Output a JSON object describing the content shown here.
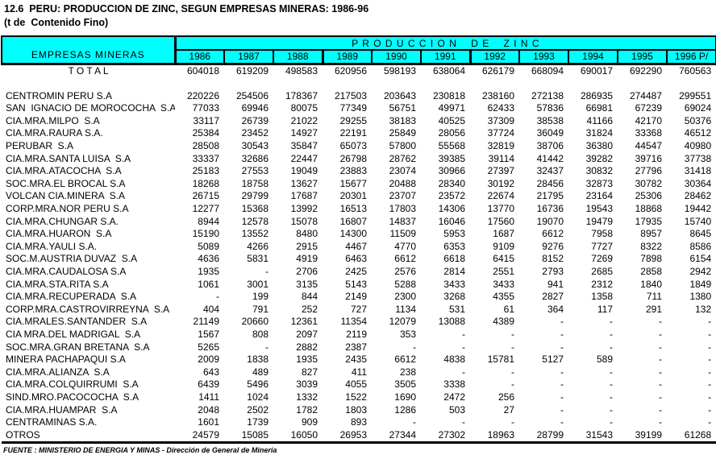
{
  "title": "12.6  PERU: PRODUCCION DE ZINC, SEGUN EMPRESAS MINERAS: 1986-96",
  "subtitle": "(t de  Contenido Fino)",
  "colors": {
    "header_bg": "#00FFFF",
    "border": "#000000",
    "text": "#000000",
    "page_bg": "#FFFFFF"
  },
  "table": {
    "row_header": "EMPRESAS MINERAS",
    "group_header": "P R O D U C C I O N    D E    Z I N C",
    "years": [
      "1986",
      "1987",
      "1988",
      "1989",
      "1990",
      "1991",
      "1992",
      "1993",
      "1994",
      "1995",
      "1996 P/"
    ],
    "total_label": "T O T A L",
    "total_values": [
      "604018",
      "619209",
      "498583",
      "620956",
      "598193",
      "638064",
      "626179",
      "668094",
      "690017",
      "692290",
      "760563"
    ],
    "rows": [
      {
        "name": "CENTROMIN PERU S.A",
        "values": [
          "220226",
          "254506",
          "178367",
          "217503",
          "203643",
          "230818",
          "238160",
          "272138",
          "286935",
          "274487",
          "299551"
        ]
      },
      {
        "name": "SAN  IGNACIO DE MOROCOCHA  S.A",
        "values": [
          "77033",
          "69946",
          "80075",
          "77349",
          "56751",
          "49971",
          "62433",
          "57836",
          "66981",
          "67239",
          "69024"
        ]
      },
      {
        "name": "CIA.MRA.MILPO  S.A",
        "values": [
          "33117",
          "26739",
          "21022",
          "29255",
          "38183",
          "40525",
          "37309",
          "38538",
          "41166",
          "42170",
          "50376"
        ]
      },
      {
        "name": "CIA.MRA.RAURA S.A.",
        "values": [
          "25384",
          "23452",
          "14927",
          "22191",
          "25849",
          "28056",
          "37724",
          "36049",
          "31824",
          "33368",
          "46512"
        ]
      },
      {
        "name": "PERUBAR  S.A",
        "values": [
          "28508",
          "30543",
          "35847",
          "65073",
          "57800",
          "55568",
          "32819",
          "38706",
          "36380",
          "44547",
          "40980"
        ]
      },
      {
        "name": "CIA.MRA.SANTA LUISA  S.A",
        "values": [
          "33337",
          "32686",
          "22447",
          "26798",
          "28762",
          "39385",
          "39114",
          "41442",
          "39282",
          "39716",
          "37738"
        ]
      },
      {
        "name": "CIA.MRA.ATACOCHA  S.A",
        "values": [
          "25183",
          "27553",
          "19049",
          "23883",
          "23074",
          "30966",
          "27397",
          "32437",
          "30832",
          "27796",
          "31418"
        ]
      },
      {
        "name": "SOC.MRA.EL BROCAL S.A",
        "values": [
          "18268",
          "18758",
          "13627",
          "15677",
          "20488",
          "28340",
          "30192",
          "28456",
          "32873",
          "30782",
          "30364"
        ]
      },
      {
        "name": "VOLCAN CIA.MINERA  S.A",
        "values": [
          "26715",
          "29799",
          "17687",
          "20301",
          "23707",
          "23572",
          "22674",
          "21795",
          "23164",
          "25306",
          "28462"
        ]
      },
      {
        "name": "CORP.MRA.NOR PERU S.A",
        "values": [
          "12277",
          "15368",
          "13992",
          "16513",
          "17803",
          "14306",
          "13770",
          "16736",
          "19543",
          "18868",
          "19442"
        ]
      },
      {
        "name": "CIA.MRA.CHUNGAR S.A.",
        "values": [
          "8944",
          "12578",
          "15078",
          "16807",
          "14837",
          "16046",
          "17560",
          "19070",
          "19479",
          "17935",
          "15740"
        ]
      },
      {
        "name": "CIA.MRA.HUARON  S.A",
        "values": [
          "15190",
          "13552",
          "8480",
          "14300",
          "11509",
          "5953",
          "1687",
          "6612",
          "7958",
          "8957",
          "8645"
        ]
      },
      {
        "name": "CIA.MRA.YAULI S.A.",
        "values": [
          "5089",
          "4266",
          "2915",
          "4467",
          "4770",
          "6353",
          "9109",
          "9276",
          "7727",
          "8322",
          "8586"
        ]
      },
      {
        "name": "SOC.M.AUSTRIA DUVAZ  S.A",
        "values": [
          "4636",
          "5831",
          "4919",
          "6463",
          "6612",
          "6618",
          "6415",
          "8152",
          "7269",
          "7898",
          "6154"
        ]
      },
      {
        "name": "CIA.MRA.CAUDALOSA S.A",
        "values": [
          "1935",
          "-",
          "2706",
          "2425",
          "2576",
          "2814",
          "2551",
          "2793",
          "2685",
          "2858",
          "2942"
        ]
      },
      {
        "name": "CIA.MRA.STA.RITA S.A",
        "values": [
          "1061",
          "3001",
          "3135",
          "5143",
          "5288",
          "3433",
          "3433",
          "941",
          "2312",
          "1840",
          "1849"
        ]
      },
      {
        "name": "CIA.MRA.RECUPERADA  S.A",
        "values": [
          "-",
          "199",
          "844",
          "2149",
          "2300",
          "3268",
          "4355",
          "2827",
          "1358",
          "711",
          "1380"
        ]
      },
      {
        "name": "CORP.MRA.CASTROVIRREYNA  S.A",
        "values": [
          "404",
          "791",
          "252",
          "727",
          "1134",
          "531",
          "61",
          "364",
          "117",
          "291",
          "132"
        ]
      },
      {
        "name": "CIA.MRALES.SANTANDER  S.A",
        "values": [
          "21149",
          "20660",
          "12361",
          "11354",
          "12079",
          "13088",
          "4389",
          "-",
          "-",
          "-",
          "-"
        ]
      },
      {
        "name": "CIA MRA.DEL MADRIGAL  S.A",
        "values": [
          "1567",
          "808",
          "2097",
          "2119",
          "353",
          "-",
          "-",
          "-",
          "-",
          "-",
          "-"
        ]
      },
      {
        "name": "SOC.MRA.GRAN BRETANA  S.A",
        "values": [
          "5265",
          "-",
          "2882",
          "2387",
          "-",
          "-",
          "-",
          "-",
          "-",
          "-",
          "-"
        ]
      },
      {
        "name": "MINERA PACHAPAQUI S.A",
        "values": [
          "2009",
          "1838",
          "1935",
          "2435",
          "6612",
          "4838",
          "15781",
          "5127",
          "589",
          "-",
          "-"
        ]
      },
      {
        "name": "CIA.MRA.ALIANZA  S.A",
        "values": [
          "643",
          "489",
          "827",
          "411",
          "238",
          "-",
          "-",
          "-",
          "-",
          "-",
          "-"
        ]
      },
      {
        "name": "CIA.MRA.COLQUIRRUMI  S.A",
        "values": [
          "6439",
          "5496",
          "3039",
          "4055",
          "3505",
          "3338",
          "-",
          "-",
          "-",
          "-",
          "-"
        ]
      },
      {
        "name": "SIND.MRO.PACOCOCHA  S.A",
        "values": [
          "1411",
          "1024",
          "1332",
          "1522",
          "1690",
          "2472",
          "256",
          "-",
          "-",
          "-",
          "-"
        ]
      },
      {
        "name": "CIA.MRA.HUAMPAR  S.A",
        "values": [
          "2048",
          "2502",
          "1782",
          "1803",
          "1286",
          "503",
          "27",
          "-",
          "-",
          "-",
          "-"
        ]
      },
      {
        "name": "CENTRAMINAS S.A.",
        "values": [
          "1601",
          "1739",
          "909",
          "893",
          "-",
          "-",
          "-",
          "-",
          "-",
          "-",
          "-"
        ]
      },
      {
        "name": "OTROS",
        "values": [
          "24579",
          "15085",
          "16050",
          "26953",
          "27344",
          "27302",
          "18963",
          "28799",
          "31543",
          "39199",
          "61268"
        ]
      }
    ]
  },
  "footer": "FUENTE : MINISTERIO DE ENERGIA Y MINAS - Dirección de General de Minería"
}
